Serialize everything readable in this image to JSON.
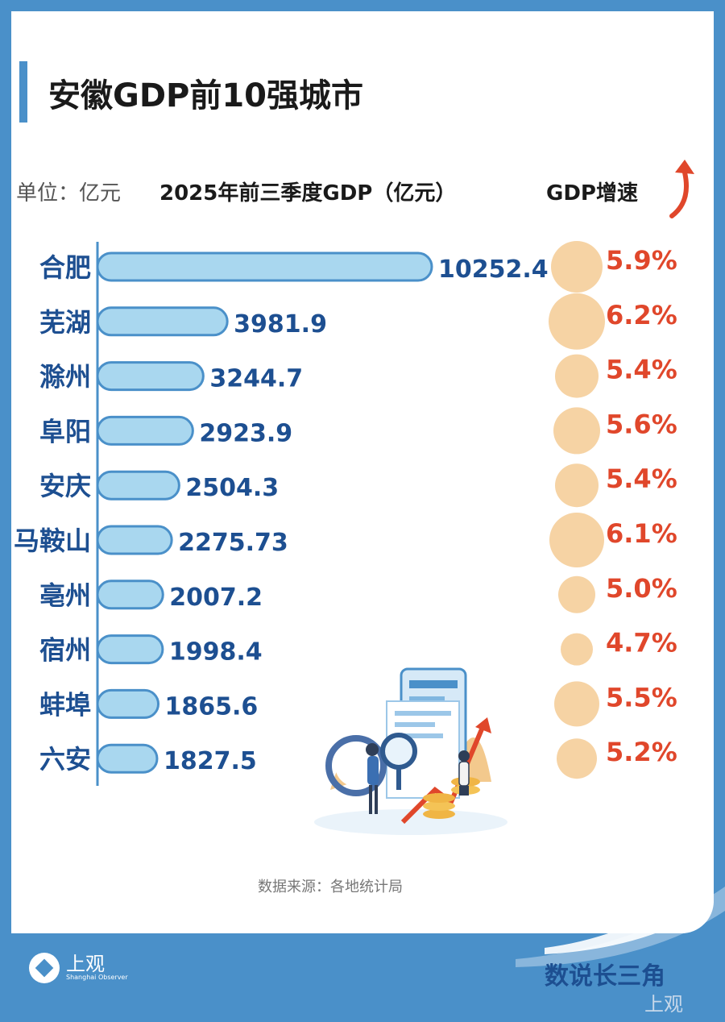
{
  "title": "安徽GDP前10强城市",
  "unit_label": "单位：亿元",
  "source": "数据来源：各地统计局",
  "branding": {
    "logo_text": "上观",
    "logo_subtext": "Shanghai Observer",
    "series_name": "数说长三角",
    "watermark": "上观"
  },
  "colors": {
    "bar_fill": "#a9d7ef",
    "bar_stroke": "#4a90c9",
    "value_text": "#1d4f91",
    "growth_text": "#e0472b",
    "bubble": "#f6d3a4",
    "frame": "#4a90c9"
  },
  "chart_data": {
    "type": "bar",
    "orientation": "horizontal",
    "categories": [
      "合肥",
      "芜湖",
      "滁州",
      "阜阳",
      "安庆",
      "马鞍山",
      "亳州",
      "宿州",
      "蚌埠",
      "六安"
    ],
    "series": [
      {
        "name": "2025年前三季度GDP（亿元）",
        "values": [
          10252.4,
          3981.9,
          3244.7,
          2923.9,
          2504.3,
          2275.73,
          2007.2,
          1998.4,
          1865.6,
          1827.5
        ],
        "labels": [
          "10252.4",
          "3981.9",
          "3244.7",
          "2923.9",
          "2504.3",
          "2275.73",
          "2007.2",
          "1998.4",
          "1865.6",
          "1827.5"
        ]
      },
      {
        "name": "GDP增速",
        "values": [
          5.9,
          6.2,
          5.4,
          5.6,
          5.4,
          6.1,
          5.0,
          4.7,
          5.5,
          5.2
        ],
        "labels": [
          "5.9%",
          "6.2%",
          "5.4%",
          "5.6%",
          "5.4%",
          "6.1%",
          "5.0%",
          "4.7%",
          "5.5%",
          "5.2%"
        ]
      }
    ]
  }
}
